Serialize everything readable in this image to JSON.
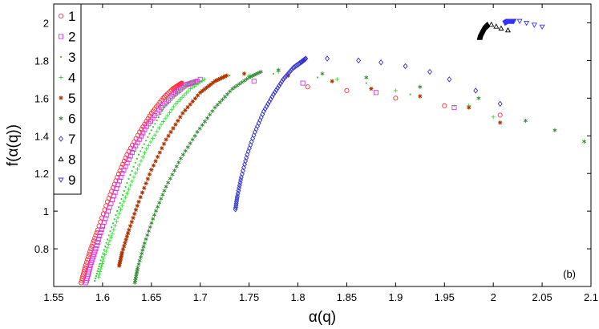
{
  "chart_data": {
    "type": "scatter",
    "xlabel": "α(q)",
    "ylabel": "f(α(q))",
    "annotation": "(b)",
    "xlim": [
      1.55,
      2.1
    ],
    "ylim": [
      0.6,
      2.1
    ],
    "xticks": [
      "1.55",
      "1.6",
      "1.65",
      "1.7",
      "1.75",
      "1.8",
      "1.85",
      "1.9",
      "1.95",
      "2",
      "2.05",
      "2.1"
    ],
    "yticks": [
      "0.8",
      "1",
      "1.2",
      "1.4",
      "1.6",
      "1.8",
      "2"
    ],
    "grid": false,
    "legend_position": "top-left",
    "series": [
      {
        "name": "1",
        "marker": "circle",
        "color": "#ff3333",
        "left": {
          "x": [
            1.578,
            1.582,
            1.588,
            1.595,
            1.605,
            1.615,
            1.625,
            1.638,
            1.65,
            1.662,
            1.672,
            1.678,
            1.681
          ],
          "y": [
            0.62,
            0.7,
            0.8,
            0.9,
            1.05,
            1.18,
            1.3,
            1.42,
            1.52,
            1.6,
            1.65,
            1.67,
            1.68
          ]
        },
        "scatter": {
          "x": [
            1.81,
            1.85,
            1.9,
            1.95,
            2.007
          ],
          "y": [
            1.66,
            1.64,
            1.6,
            1.56,
            1.51
          ]
        }
      },
      {
        "name": "2",
        "marker": "square",
        "color": "#dd33dd",
        "left": {
          "x": [
            1.583,
            1.587,
            1.593,
            1.6,
            1.61,
            1.62,
            1.632,
            1.645,
            1.66,
            1.673,
            1.685,
            1.697
          ],
          "y": [
            0.62,
            0.7,
            0.8,
            0.92,
            1.06,
            1.2,
            1.33,
            1.45,
            1.55,
            1.62,
            1.67,
            1.69
          ]
        },
        "scatter": {
          "x": [
            1.7,
            1.755,
            1.805,
            1.88,
            1.96
          ],
          "y": [
            1.7,
            1.69,
            1.68,
            1.63,
            1.55
          ]
        }
      },
      {
        "name": "3",
        "marker": "point",
        "color": "#33cc33",
        "left": {
          "x": [
            1.592,
            1.597,
            1.605,
            1.615,
            1.625,
            1.637,
            1.65,
            1.663,
            1.678,
            1.692
          ],
          "y": [
            0.63,
            0.72,
            0.85,
            1.0,
            1.15,
            1.3,
            1.43,
            1.55,
            1.64,
            1.69
          ]
        },
        "scatter": {
          "x": [
            1.73,
            1.775,
            1.82,
            1.87,
            1.915,
            1.96
          ],
          "y": [
            1.72,
            1.73,
            1.71,
            1.68,
            1.62,
            1.56
          ]
        }
      },
      {
        "name": "4",
        "marker": "plus",
        "color": "#33dd33",
        "left": {
          "x": [
            1.596,
            1.601,
            1.61,
            1.62,
            1.632,
            1.645,
            1.66,
            1.675,
            1.69,
            1.704
          ],
          "y": [
            0.65,
            0.75,
            0.88,
            1.03,
            1.18,
            1.33,
            1.46,
            1.57,
            1.65,
            1.7
          ]
        },
        "scatter": {
          "x": [
            1.75,
            1.78,
            1.84,
            1.9,
            1.975,
            2.0
          ],
          "y": [
            1.72,
            1.74,
            1.7,
            1.64,
            1.56,
            1.5
          ]
        }
      },
      {
        "name": "5",
        "marker": "star",
        "color": "#aa3300",
        "left": {
          "x": [
            1.617,
            1.62,
            1.627,
            1.637,
            1.65,
            1.665,
            1.682,
            1.7,
            1.715,
            1.727
          ],
          "y": [
            0.71,
            0.78,
            0.9,
            1.05,
            1.22,
            1.38,
            1.52,
            1.63,
            1.69,
            1.72
          ]
        },
        "scatter": {
          "x": [
            1.745,
            1.79,
            1.835,
            1.875,
            1.925,
            1.975,
            2.007
          ],
          "y": [
            1.73,
            1.72,
            1.69,
            1.65,
            1.61,
            1.55,
            1.47
          ]
        }
      },
      {
        "name": "6",
        "marker": "asterisk",
        "color": "#338833",
        "left": {
          "x": [
            1.633,
            1.636,
            1.643,
            1.653,
            1.665,
            1.68,
            1.697,
            1.715,
            1.733,
            1.75,
            1.762
          ],
          "y": [
            0.62,
            0.7,
            0.83,
            0.98,
            1.13,
            1.28,
            1.42,
            1.55,
            1.65,
            1.71,
            1.74
          ]
        },
        "scatter": {
          "x": [
            1.78,
            1.825,
            1.87,
            1.925,
            1.985,
            2.033,
            2.063,
            2.093
          ],
          "y": [
            1.75,
            1.73,
            1.71,
            1.66,
            1.6,
            1.48,
            1.43,
            1.37
          ]
        }
      },
      {
        "name": "7",
        "marker": "diamond",
        "color": "#3333cc",
        "left": {
          "x": [
            1.736,
            1.738,
            1.742,
            1.748,
            1.756,
            1.765,
            1.775,
            1.785,
            1.795,
            1.803,
            1.808
          ],
          "y": [
            1.01,
            1.08,
            1.18,
            1.3,
            1.42,
            1.53,
            1.62,
            1.7,
            1.76,
            1.79,
            1.81
          ]
        },
        "scatter": {
          "x": [
            1.83,
            1.862,
            1.885,
            1.91,
            1.935,
            1.955,
            1.982,
            2.007
          ],
          "y": [
            1.81,
            1.8,
            1.79,
            1.77,
            1.74,
            1.7,
            1.64,
            1.57
          ]
        }
      },
      {
        "name": "8",
        "marker": "triangle-up",
        "color": "#000000",
        "left": {
          "x": [
            1.986,
            1.987,
            1.988,
            1.989,
            1.99,
            1.992,
            1.994
          ],
          "y": [
            1.92,
            1.94,
            1.95,
            1.96,
            1.97,
            1.98,
            1.99
          ]
        },
        "scatter": {
          "x": [
            1.998,
            2.003,
            2.008,
            2.015
          ],
          "y": [
            1.99,
            1.98,
            1.97,
            1.96
          ]
        }
      },
      {
        "name": "9",
        "marker": "triangle-down",
        "color": "#3333ff",
        "left": {
          "x": [
            2.012,
            2.015,
            2.018,
            2.021
          ],
          "y": [
            2.0,
            2.01,
            2.01,
            2.01
          ]
        },
        "scatter": {
          "x": [
            2.027,
            2.034,
            2.042,
            2.05
          ],
          "y": [
            2.01,
            2.0,
            1.99,
            1.98
          ]
        }
      }
    ]
  }
}
